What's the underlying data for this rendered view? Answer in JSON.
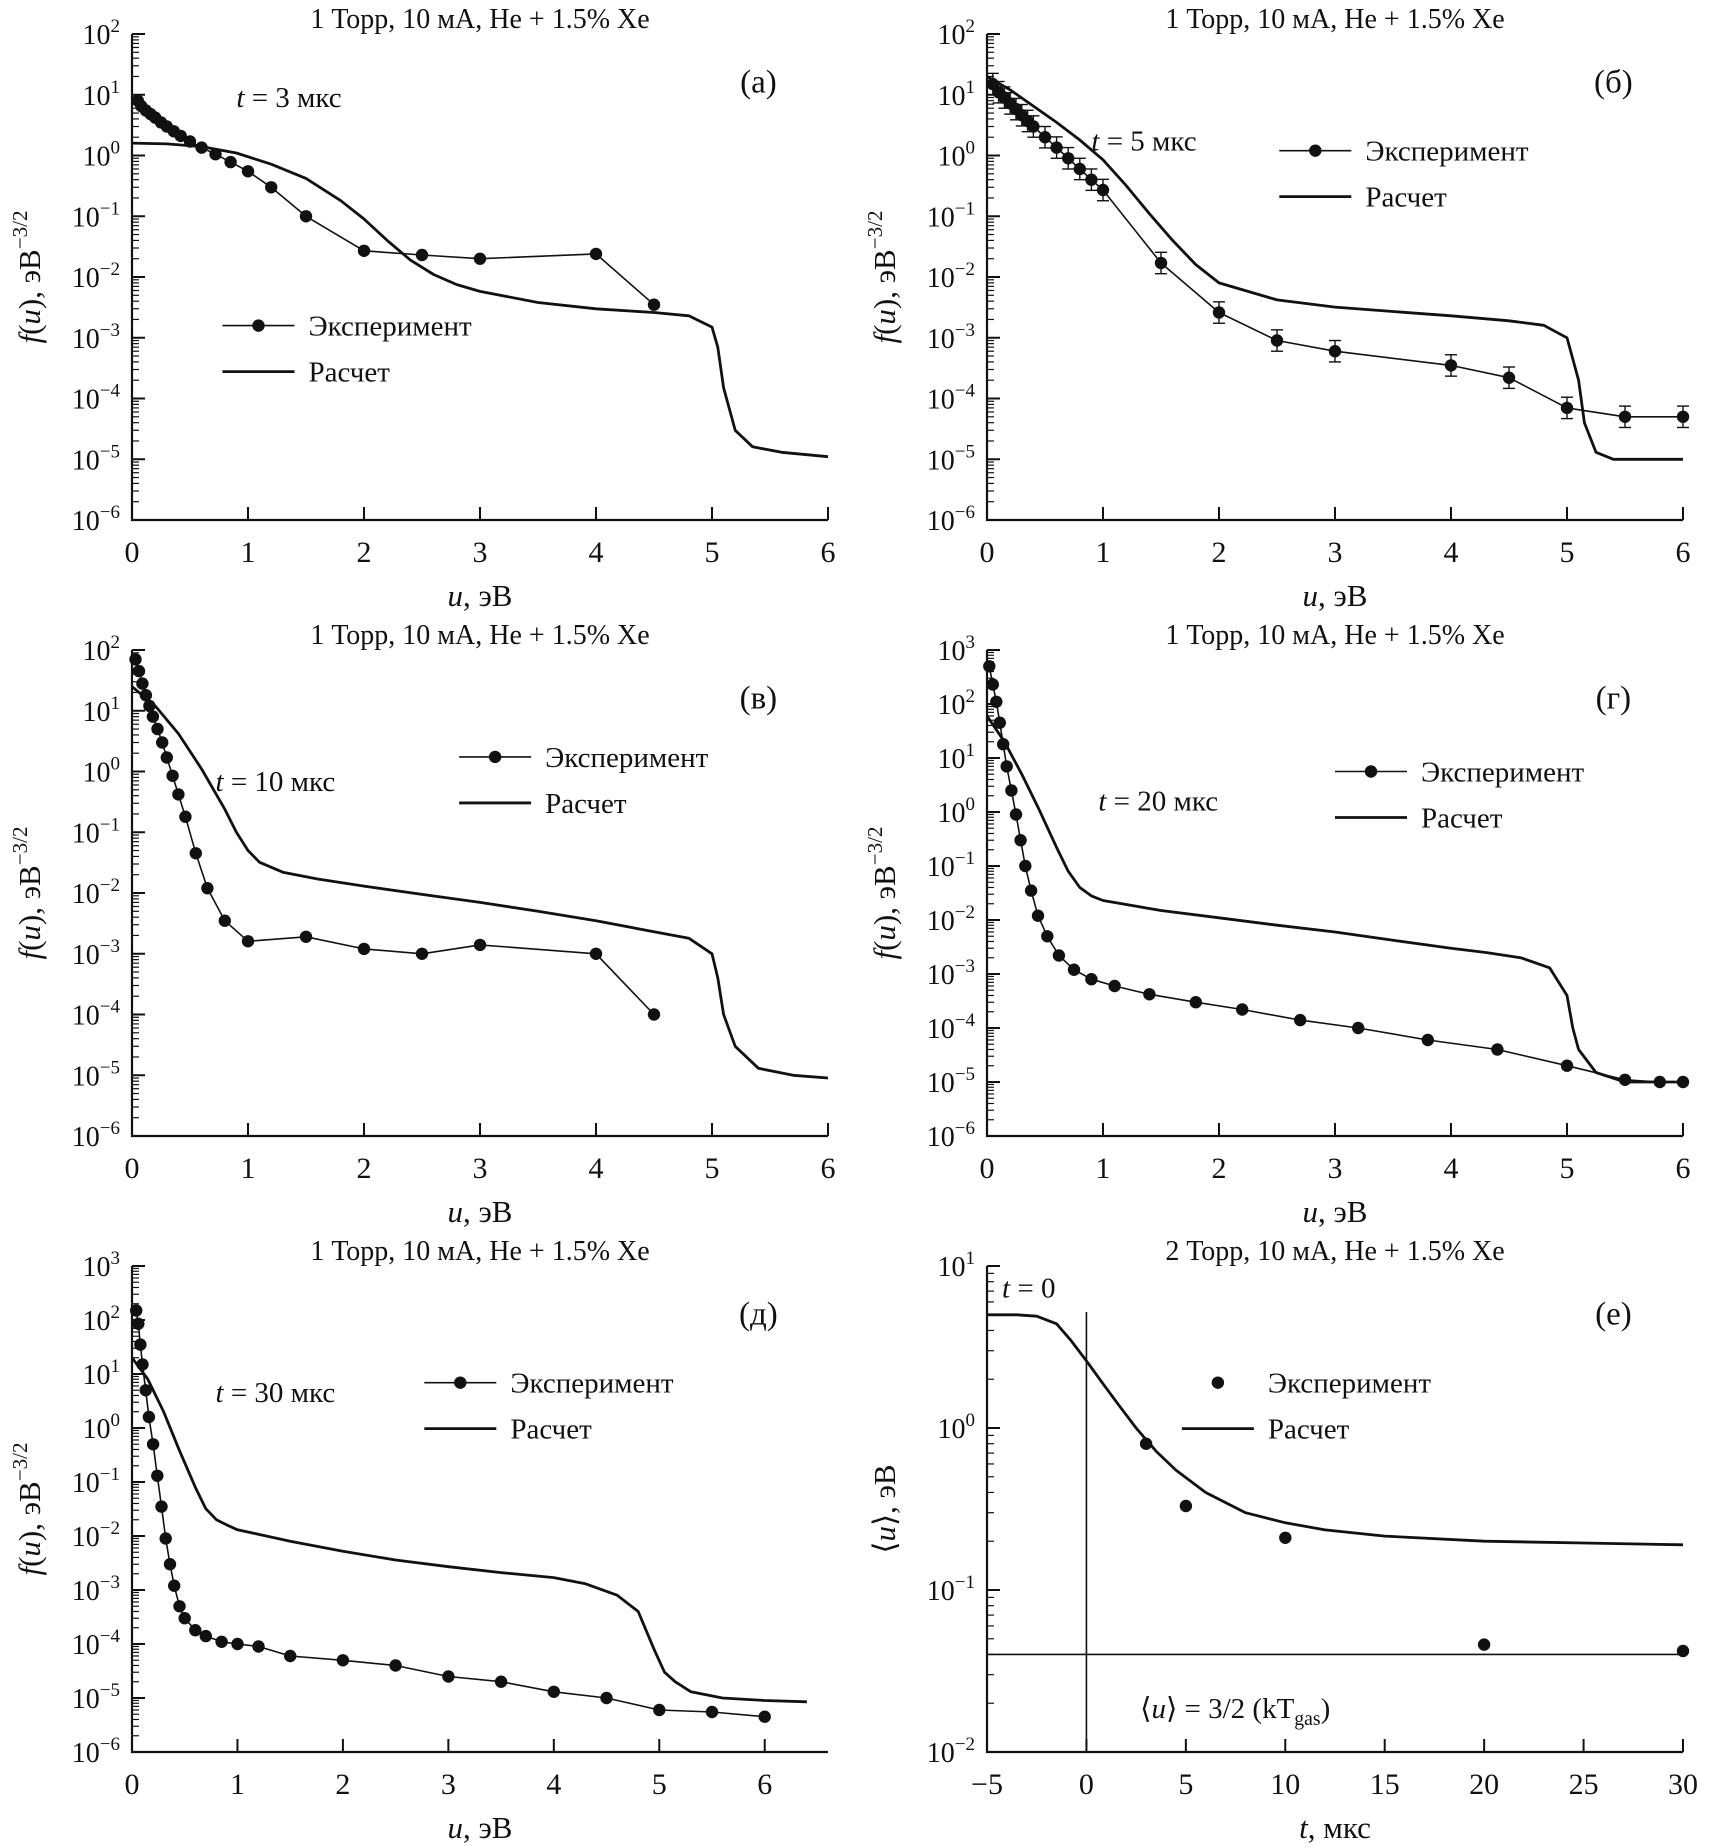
{
  "figure": {
    "background": "#ffffff",
    "text_color": "#111111"
  },
  "chart_data": [
    {
      "id": "a",
      "type": "line",
      "panel_label": "(а)",
      "title": "1 Торр, 10 мА, He + 1.5% Xe",
      "xlabel_runs": [
        {
          "t": "u",
          "i": true
        },
        {
          "t": ", эВ"
        }
      ],
      "ylabel_runs": [
        {
          "t": "f",
          "i": true
        },
        {
          "t": "("
        },
        {
          "t": "u",
          "i": true
        },
        {
          "t": "), эВ"
        },
        {
          "t": "−3/2",
          "sup": true
        }
      ],
      "xlim": [
        0,
        6
      ],
      "x_ticks": [
        0,
        1,
        2,
        3,
        4,
        5,
        6
      ],
      "ylog": [
        -6,
        2
      ],
      "annotations": [
        {
          "runs": [
            {
              "t": "t",
              "i": true
            },
            {
              "t": " = 3 мкс"
            }
          ],
          "fx": 0.15,
          "fy": 0.15,
          "anchor": "start"
        }
      ],
      "legend": {
        "fx": 0.13,
        "fy": 0.6,
        "entries": [
          {
            "sample": "dot-line",
            "label": "Эксперимент"
          },
          {
            "sample": "line",
            "label": "Расчет"
          }
        ]
      },
      "series": [
        {
          "name": "Эксперимент",
          "style": "dot-line",
          "x": [
            0.05,
            0.08,
            0.12,
            0.16,
            0.2,
            0.25,
            0.3,
            0.36,
            0.42,
            0.5,
            0.6,
            0.72,
            0.85,
            1.0,
            1.2,
            1.5,
            2.0,
            2.5,
            3.0,
            4.0,
            4.5
          ],
          "y": [
            8,
            6.5,
            5.5,
            4.8,
            4.2,
            3.5,
            3.0,
            2.5,
            2.1,
            1.7,
            1.35,
            1.05,
            0.78,
            0.55,
            0.3,
            0.1,
            0.027,
            0.023,
            0.02,
            0.024,
            0.0035
          ]
        },
        {
          "name": "Расчет",
          "style": "line",
          "x": [
            0,
            0.3,
            0.6,
            0.9,
            1.2,
            1.5,
            1.8,
            2.0,
            2.2,
            2.4,
            2.6,
            2.8,
            3.0,
            3.5,
            4.0,
            4.5,
            4.8,
            5.0,
            5.05,
            5.1,
            5.2,
            5.35,
            5.6,
            6.0
          ],
          "y": [
            1.6,
            1.55,
            1.4,
            1.1,
            0.72,
            0.42,
            0.18,
            0.09,
            0.04,
            0.019,
            0.011,
            0.0075,
            0.0058,
            0.0038,
            0.003,
            0.0026,
            0.0023,
            0.0015,
            0.0007,
            0.00015,
            3e-05,
            1.6e-05,
            1.3e-05,
            1.1e-05
          ]
        }
      ]
    },
    {
      "id": "b",
      "type": "line",
      "panel_label": "(б)",
      "title": "1 Торр, 10 мА, He + 1.5% Xe",
      "xlabel_runs": [
        {
          "t": "u",
          "i": true
        },
        {
          "t": ", эВ"
        }
      ],
      "ylabel_runs": [
        {
          "t": "f",
          "i": true
        },
        {
          "t": "("
        },
        {
          "t": "u",
          "i": true
        },
        {
          "t": "), эВ"
        },
        {
          "t": "−3/2",
          "sup": true
        }
      ],
      "xlim": [
        0,
        6
      ],
      "x_ticks": [
        0,
        1,
        2,
        3,
        4,
        5,
        6
      ],
      "ylog": [
        -6,
        2
      ],
      "annotations": [
        {
          "runs": [
            {
              "t": "t",
              "i": true
            },
            {
              "t": " = 5 мкс"
            }
          ],
          "fx": 0.15,
          "fy": 0.24,
          "anchor": "start"
        }
      ],
      "legend": {
        "fx": 0.42,
        "fy": 0.24,
        "entries": [
          {
            "sample": "dot-line",
            "label": "Эксперимент"
          },
          {
            "sample": "line",
            "label": "Расчет"
          }
        ]
      },
      "series": [
        {
          "name": "Эксперимент",
          "style": "dot-line",
          "yerr_factor": 1.5,
          "x": [
            0.05,
            0.1,
            0.15,
            0.2,
            0.25,
            0.3,
            0.35,
            0.4,
            0.5,
            0.6,
            0.7,
            0.8,
            0.9,
            1.0,
            1.5,
            2.0,
            2.5,
            3.0,
            4.0,
            4.5,
            5.0,
            5.5,
            6.0
          ],
          "y": [
            15,
            11,
            9,
            7.2,
            5.8,
            4.6,
            3.7,
            3.0,
            2.0,
            1.35,
            0.9,
            0.6,
            0.4,
            0.27,
            0.017,
            0.0026,
            0.0009,
            0.0006,
            0.00035,
            0.00022,
            7e-05,
            5e-05,
            5e-05
          ]
        },
        {
          "name": "Расчет",
          "style": "line",
          "x": [
            0,
            0.2,
            0.4,
            0.6,
            0.8,
            1.0,
            1.2,
            1.4,
            1.6,
            1.8,
            2.0,
            2.5,
            3.0,
            3.5,
            4.0,
            4.5,
            4.8,
            5.0,
            5.1,
            5.15,
            5.25,
            5.4,
            6.0
          ],
          "y": [
            20,
            12,
            6.5,
            3.5,
            1.8,
            0.85,
            0.32,
            0.11,
            0.04,
            0.016,
            0.008,
            0.0042,
            0.0032,
            0.0027,
            0.0023,
            0.0019,
            0.0016,
            0.001,
            0.0002,
            4e-05,
            1.3e-05,
            1e-05,
            1e-05
          ]
        }
      ]
    },
    {
      "id": "v",
      "type": "line",
      "panel_label": "(в)",
      "title": "1 Торр, 10 мА, He + 1.5% Xe",
      "xlabel_runs": [
        {
          "t": "u",
          "i": true
        },
        {
          "t": ", эВ"
        }
      ],
      "ylabel_runs": [
        {
          "t": "f",
          "i": true
        },
        {
          "t": "("
        },
        {
          "t": "u",
          "i": true
        },
        {
          "t": "), эВ"
        },
        {
          "t": "−3/2",
          "sup": true
        }
      ],
      "xlim": [
        0,
        6
      ],
      "x_ticks": [
        0,
        1,
        2,
        3,
        4,
        5,
        6
      ],
      "ylog": [
        -6,
        2
      ],
      "annotations": [
        {
          "runs": [
            {
              "t": "t",
              "i": true
            },
            {
              "t": " = 10 мкс"
            }
          ],
          "fx": 0.12,
          "fy": 0.29,
          "anchor": "start"
        }
      ],
      "legend": {
        "fx": 0.47,
        "fy": 0.22,
        "entries": [
          {
            "sample": "dot-line",
            "label": "Эксперимент"
          },
          {
            "sample": "line",
            "label": "Расчет"
          }
        ]
      },
      "series": [
        {
          "name": "Эксперимент",
          "style": "dot-line",
          "x": [
            0.03,
            0.06,
            0.09,
            0.12,
            0.15,
            0.18,
            0.22,
            0.26,
            0.3,
            0.35,
            0.4,
            0.46,
            0.55,
            0.65,
            0.8,
            1.0,
            1.5,
            2.0,
            2.5,
            3.0,
            4.0,
            4.5
          ],
          "y": [
            70,
            45,
            28,
            18,
            12,
            8,
            5,
            3,
            1.7,
            0.85,
            0.42,
            0.18,
            0.045,
            0.012,
            0.0035,
            0.0016,
            0.0019,
            0.0012,
            0.001,
            0.0014,
            0.001,
            0.0001
          ]
        },
        {
          "name": "Расчет",
          "style": "line",
          "x": [
            0,
            0.2,
            0.4,
            0.6,
            0.8,
            0.9,
            1.0,
            1.1,
            1.3,
            1.6,
            2.0,
            2.5,
            3.0,
            3.5,
            4.0,
            4.5,
            4.8,
            5.0,
            5.05,
            5.1,
            5.2,
            5.4,
            5.7,
            6.0
          ],
          "y": [
            25,
            12,
            4.2,
            1.1,
            0.24,
            0.1,
            0.05,
            0.032,
            0.022,
            0.017,
            0.013,
            0.0095,
            0.007,
            0.005,
            0.0035,
            0.0023,
            0.0018,
            0.001,
            0.0004,
            0.0001,
            3e-05,
            1.3e-05,
            1e-05,
            9e-06
          ]
        }
      ]
    },
    {
      "id": "g",
      "type": "line",
      "panel_label": "(г)",
      "title": "1 Торр, 10 мА, He + 1.5% Xe",
      "xlabel_runs": [
        {
          "t": "u",
          "i": true
        },
        {
          "t": ", эВ"
        }
      ],
      "ylabel_runs": [
        {
          "t": "f",
          "i": true
        },
        {
          "t": "("
        },
        {
          "t": "u",
          "i": true
        },
        {
          "t": "), эВ"
        },
        {
          "t": "−3/2",
          "sup": true
        }
      ],
      "xlim": [
        0,
        6
      ],
      "x_ticks": [
        0,
        1,
        2,
        3,
        4,
        5,
        6
      ],
      "ylog": [
        -6,
        3
      ],
      "annotations": [
        {
          "runs": [
            {
              "t": "t",
              "i": true
            },
            {
              "t": " = 20 мкс"
            }
          ],
          "fx": 0.16,
          "fy": 0.33,
          "anchor": "start"
        }
      ],
      "legend": {
        "fx": 0.5,
        "fy": 0.25,
        "entries": [
          {
            "sample": "dot-line",
            "label": "Эксперимент"
          },
          {
            "sample": "line",
            "label": "Расчет"
          }
        ]
      },
      "series": [
        {
          "name": "Эксперимент",
          "style": "dot-line",
          "x": [
            0.02,
            0.05,
            0.08,
            0.11,
            0.14,
            0.17,
            0.21,
            0.25,
            0.29,
            0.33,
            0.38,
            0.44,
            0.52,
            0.62,
            0.75,
            0.9,
            1.1,
            1.4,
            1.8,
            2.2,
            2.7,
            3.2,
            3.8,
            4.4,
            5.0,
            5.5,
            5.8,
            6.0
          ],
          "y": [
            500,
            230,
            110,
            45,
            18,
            7,
            2.5,
            0.9,
            0.3,
            0.1,
            0.035,
            0.012,
            0.005,
            0.0022,
            0.0012,
            0.0008,
            0.0006,
            0.00042,
            0.0003,
            0.00022,
            0.00014,
            0.0001,
            6e-05,
            4e-05,
            2e-05,
            1.1e-05,
            1e-05,
            1e-05
          ]
        },
        {
          "name": "Расчет",
          "style": "line",
          "x": [
            0,
            0.15,
            0.3,
            0.45,
            0.6,
            0.7,
            0.8,
            0.9,
            1.0,
            1.5,
            2.0,
            2.5,
            3.0,
            3.5,
            4.0,
            4.3,
            4.6,
            4.85,
            5.0,
            5.05,
            5.1,
            5.25,
            5.5,
            6.0
          ],
          "y": [
            60,
            20,
            5,
            1.1,
            0.22,
            0.08,
            0.04,
            0.028,
            0.023,
            0.015,
            0.011,
            0.008,
            0.006,
            0.0042,
            0.003,
            0.0025,
            0.002,
            0.0013,
            0.0004,
            0.0001,
            4e-05,
            1.5e-05,
            1e-05,
            1e-05
          ]
        }
      ]
    },
    {
      "id": "d",
      "type": "line",
      "panel_label": "(д)",
      "title": "1 Торр, 10 мА, He + 1.5% Xe",
      "xlabel_runs": [
        {
          "t": "u",
          "i": true
        },
        {
          "t": ", эВ"
        }
      ],
      "ylabel_runs": [
        {
          "t": "f",
          "i": true
        },
        {
          "t": "("
        },
        {
          "t": "u",
          "i": true
        },
        {
          "t": "), эВ"
        },
        {
          "t": "−3/2",
          "sup": true
        }
      ],
      "xlim": [
        0,
        6.6
      ],
      "x_ticks": [
        0,
        1,
        2,
        3,
        4,
        5,
        6
      ],
      "ylog": [
        -6,
        3
      ],
      "annotations": [
        {
          "runs": [
            {
              "t": "t",
              "i": true
            },
            {
              "t": " = 30 мкс"
            }
          ],
          "fx": 0.12,
          "fy": 0.28,
          "anchor": "start"
        }
      ],
      "legend": {
        "fx": 0.42,
        "fy": 0.24,
        "entries": [
          {
            "sample": "dot-line",
            "label": "Эксперимент"
          },
          {
            "sample": "line",
            "label": "Расчет"
          }
        ]
      },
      "series": [
        {
          "name": "Эксперимент",
          "style": "dot-line",
          "x": [
            0.04,
            0.06,
            0.08,
            0.1,
            0.13,
            0.16,
            0.2,
            0.24,
            0.28,
            0.32,
            0.36,
            0.4,
            0.45,
            0.5,
            0.6,
            0.7,
            0.85,
            1.0,
            1.2,
            1.5,
            2.0,
            2.5,
            3.0,
            3.5,
            4.0,
            4.5,
            5.0,
            5.5,
            6.0
          ],
          "y": [
            150,
            85,
            35,
            15,
            5,
            1.6,
            0.5,
            0.13,
            0.035,
            0.009,
            0.003,
            0.0012,
            0.0005,
            0.0003,
            0.00018,
            0.00014,
            0.00011,
            0.0001,
            9e-05,
            6e-05,
            5e-05,
            4e-05,
            2.5e-05,
            2e-05,
            1.3e-05,
            1e-05,
            6e-06,
            5.5e-06,
            4.5e-06
          ]
        },
        {
          "name": "Расчет",
          "style": "line",
          "x": [
            0,
            0.15,
            0.3,
            0.45,
            0.6,
            0.7,
            0.8,
            0.9,
            1.0,
            1.5,
            2.0,
            2.5,
            3.0,
            3.5,
            4.0,
            4.3,
            4.6,
            4.8,
            4.95,
            5.05,
            5.15,
            5.3,
            5.6,
            6.0,
            6.4
          ],
          "y": [
            20,
            8,
            2,
            0.38,
            0.08,
            0.032,
            0.02,
            0.016,
            0.013,
            0.008,
            0.0052,
            0.0036,
            0.0027,
            0.0021,
            0.0017,
            0.0013,
            0.0008,
            0.0004,
            8e-05,
            3e-05,
            2e-05,
            1.3e-05,
            1e-05,
            9e-06,
            8.5e-06
          ]
        }
      ]
    },
    {
      "id": "e",
      "type": "line",
      "panel_label": "(е)",
      "title": "2 Торр, 10 мА, He + 1.5% Xe",
      "xlabel_runs": [
        {
          "t": "t",
          "i": true
        },
        {
          "t": ", мкс"
        }
      ],
      "ylabel_runs": [
        {
          "t": "⟨"
        },
        {
          "t": "u",
          "i": true
        },
        {
          "t": "⟩, эВ"
        }
      ],
      "xlim": [
        -5,
        30
      ],
      "x_ticks": [
        -5,
        0,
        5,
        10,
        15,
        20,
        25,
        30
      ],
      "ylog": [
        -2,
        1
      ],
      "lines": [
        {
          "kind": "v",
          "x": 0,
          "y0": 0.0105,
          "y1": 5.2
        },
        {
          "kind": "h",
          "y": 0.04,
          "x0": -5,
          "x1": 30
        }
      ],
      "annotations": [
        {
          "runs": [
            {
              "t": "t",
              "i": true
            },
            {
              "t": " = 0"
            }
          ],
          "fx": 0.06,
          "fy": 0.065,
          "anchor": "middle"
        },
        {
          "runs": [
            {
              "t": "⟨"
            },
            {
              "t": "u",
              "i": true
            },
            {
              "t": "⟩ = 3/2 (kT"
            },
            {
              "t": "gas",
              "sub": true
            },
            {
              "t": ")"
            }
          ],
          "fx": 0.22,
          "fy": 0.93,
          "anchor": "start"
        }
      ],
      "legend": {
        "fx": 0.28,
        "fy": 0.24,
        "entries": [
          {
            "sample": "dot",
            "label": "Эксперимент"
          },
          {
            "sample": "line",
            "label": "Расчет"
          }
        ]
      },
      "series": [
        {
          "name": "Эксперимент",
          "style": "dot",
          "x": [
            3,
            5,
            10,
            20,
            30
          ],
          "y": [
            0.8,
            0.33,
            0.21,
            0.046,
            0.042
          ]
        },
        {
          "name": "Расчет",
          "style": "line",
          "x": [
            -5,
            -3.5,
            -2.5,
            -1.5,
            -0.8,
            0,
            0.8,
            1.6,
            2.5,
            3.5,
            4.5,
            6,
            8,
            10,
            12,
            15,
            20,
            25,
            30
          ],
          "y": [
            5,
            5,
            4.9,
            4.4,
            3.5,
            2.6,
            1.9,
            1.4,
            1.0,
            0.72,
            0.55,
            0.4,
            0.3,
            0.26,
            0.235,
            0.215,
            0.2,
            0.195,
            0.19
          ]
        }
      ]
    }
  ]
}
